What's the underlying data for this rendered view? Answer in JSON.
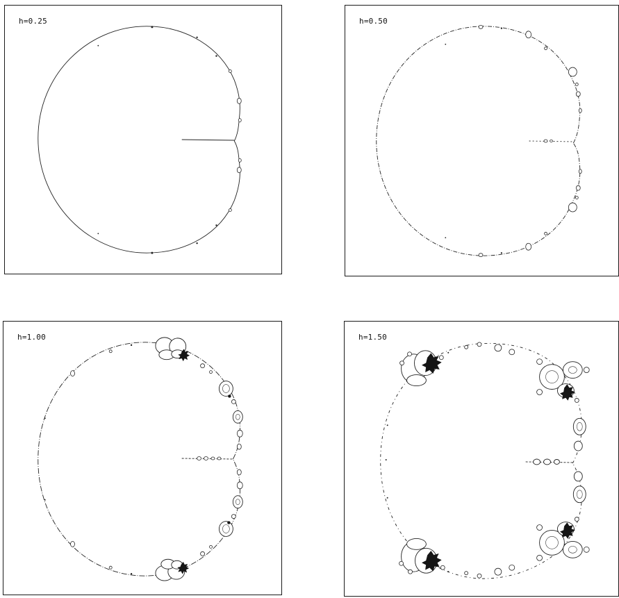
{
  "panels": [
    {
      "label": "h=0.25"
    },
    {
      "label": "h=0.50"
    },
    {
      "label": "h=1.00"
    },
    {
      "label": "h=1.50"
    }
  ]
}
